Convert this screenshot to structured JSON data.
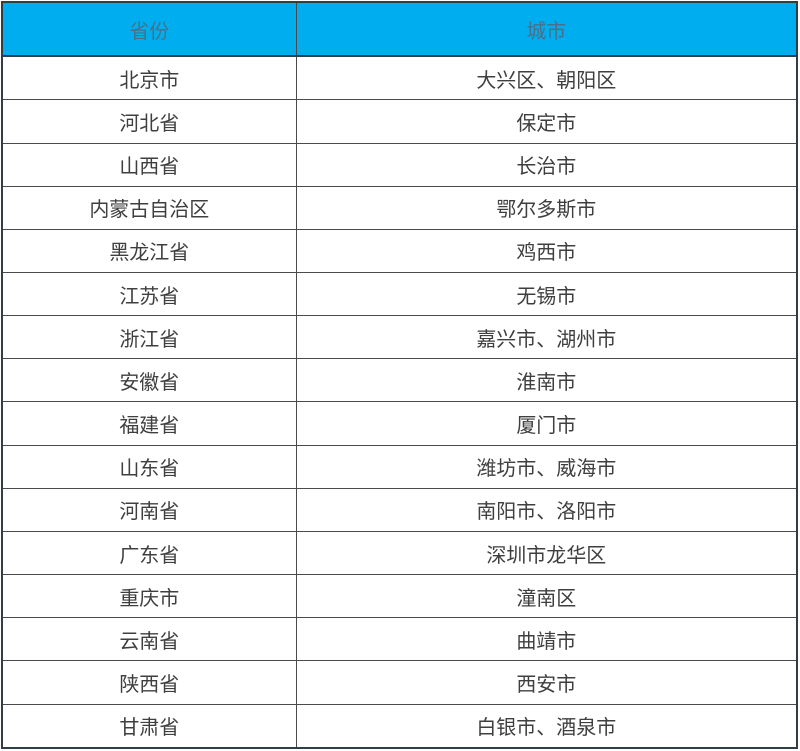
{
  "table": {
    "headers": {
      "province": "省份",
      "city": "城市"
    },
    "rows": [
      {
        "province": "北京市",
        "city": "大兴区、朝阳区"
      },
      {
        "province": "河北省",
        "city": "保定市"
      },
      {
        "province": "山西省",
        "city": "长治市"
      },
      {
        "province": "内蒙古自治区",
        "city": "鄂尔多斯市"
      },
      {
        "province": "黑龙江省",
        "city": "鸡西市"
      },
      {
        "province": "江苏省",
        "city": "无锡市"
      },
      {
        "province": "浙江省",
        "city": "嘉兴市、湖州市"
      },
      {
        "province": "安徽省",
        "city": "淮南市"
      },
      {
        "province": "福建省",
        "city": "厦门市"
      },
      {
        "province": "山东省",
        "city": "潍坊市、威海市"
      },
      {
        "province": "河南省",
        "city": "南阳市、洛阳市"
      },
      {
        "province": "广东省",
        "city": "深圳市龙华区"
      },
      {
        "province": "重庆市",
        "city": "潼南区"
      },
      {
        "province": "云南省",
        "city": "曲靖市"
      },
      {
        "province": "陕西省",
        "city": "西安市"
      },
      {
        "province": "甘肃省",
        "city": "白银市、酒泉市"
      }
    ]
  },
  "colors": {
    "header_background": "#00AEEF",
    "header_text": "#47718a",
    "body_text": "#3f3f3f",
    "grid_border": "#4a4a4a",
    "outer_border": "#2e3f4a"
  },
  "chart_data": {
    "type": "table",
    "columns": [
      "省份",
      "城市"
    ],
    "rows": [
      [
        "北京市",
        "大兴区、朝阳区"
      ],
      [
        "河北省",
        "保定市"
      ],
      [
        "山西省",
        "长治市"
      ],
      [
        "内蒙古自治区",
        "鄂尔多斯市"
      ],
      [
        "黑龙江省",
        "鸡西市"
      ],
      [
        "江苏省",
        "无锡市"
      ],
      [
        "浙江省",
        "嘉兴市、湖州市"
      ],
      [
        "安徽省",
        "淮南市"
      ],
      [
        "福建省",
        "厦门市"
      ],
      [
        "山东省",
        "潍坊市、威海市"
      ],
      [
        "河南省",
        "南阳市、洛阳市"
      ],
      [
        "广东省",
        "深圳市龙华区"
      ],
      [
        "重庆市",
        "潼南区"
      ],
      [
        "云南省",
        "曲靖市"
      ],
      [
        "陕西省",
        "西安市"
      ],
      [
        "甘肃省",
        "白银市、酒泉市"
      ]
    ],
    "title": "",
    "layout": {
      "header_style": "cyan-fill",
      "grid": true,
      "text_align": "center"
    }
  }
}
